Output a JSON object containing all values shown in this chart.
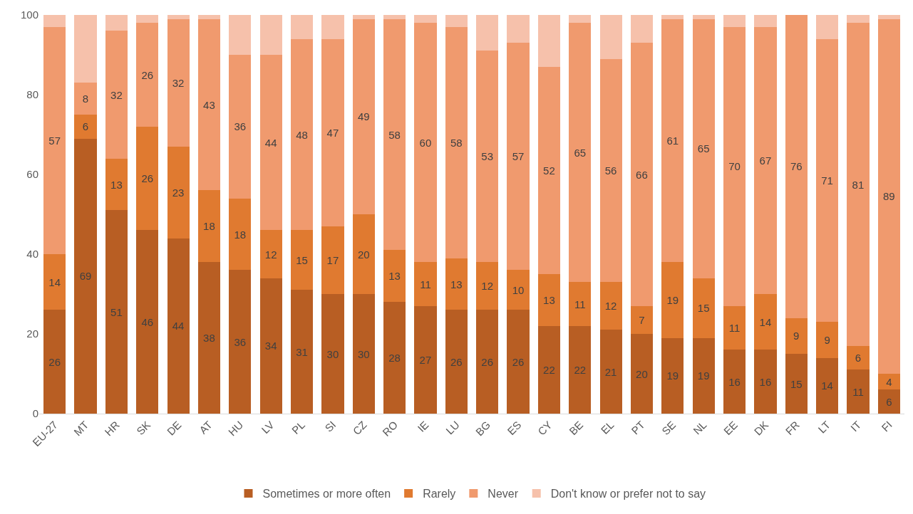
{
  "chart_data": {
    "type": "bar",
    "stacked": true,
    "categories": [
      "EU-27",
      "MT",
      "HR",
      "SK",
      "DE",
      "AT",
      "HU",
      "LV",
      "PL",
      "SI",
      "CZ",
      "RO",
      "IE",
      "LU",
      "BG",
      "ES",
      "CY",
      "BE",
      "EL",
      "PT",
      "SE",
      "NL",
      "EE",
      "DK",
      "FR",
      "LT",
      "IT",
      "FI"
    ],
    "series": [
      {
        "name": "Sometimes or more often",
        "color": "#b85e23",
        "values": [
          26,
          69,
          51,
          46,
          44,
          38,
          36,
          34,
          31,
          30,
          30,
          28,
          27,
          26,
          26,
          26,
          22,
          22,
          21,
          20,
          19,
          19,
          16,
          16,
          15,
          14,
          11,
          6
        ],
        "value_labels": [
          "26",
          "69",
          "51",
          "46",
          "44",
          "38",
          "36",
          "34",
          "31",
          "30",
          "30",
          "28",
          "27",
          "26",
          "26",
          "26",
          "22",
          "22",
          "21",
          "20",
          "19",
          "19",
          "16",
          "16",
          "15",
          "14",
          "11",
          "6"
        ]
      },
      {
        "name": "Rarely",
        "color": "#e07a30",
        "values": [
          14,
          6,
          13,
          26,
          23,
          18,
          18,
          12,
          15,
          17,
          20,
          13,
          11,
          13,
          12,
          10,
          13,
          11,
          12,
          7,
          19,
          15,
          11,
          14,
          9,
          9,
          6,
          4
        ],
        "value_labels": [
          "14",
          "6",
          "13",
          "26",
          "23",
          "18",
          "18",
          "12",
          "15",
          "17",
          "20",
          "13",
          "11",
          "13",
          "12",
          "10",
          "13",
          "11",
          "12",
          "7",
          "19",
          "15",
          "11",
          "14",
          "9",
          "9",
          "6",
          "4"
        ]
      },
      {
        "name": "Never",
        "color": "#f09a6e",
        "values": [
          57,
          8,
          32,
          26,
          32,
          43,
          36,
          44,
          48,
          47,
          49,
          58,
          60,
          58,
          53,
          57,
          52,
          65,
          56,
          66,
          61,
          65,
          70,
          67,
          76,
          71,
          81,
          89
        ],
        "value_labels": [
          "57",
          "8",
          "32",
          "26",
          "32",
          "43",
          "36",
          "44",
          "48",
          "47",
          "49",
          "58",
          "60",
          "58",
          "53",
          "57",
          "52",
          "65",
          "56",
          "66",
          "61",
          "65",
          "70",
          "67",
          "76",
          "71",
          "81",
          "89"
        ]
      },
      {
        "name": "Don't know or prefer not to say",
        "color": "#f6c1ab",
        "values": [
          3,
          17,
          4,
          2,
          1,
          1,
          10,
          10,
          6,
          6,
          1,
          1,
          2,
          3,
          9,
          7,
          13,
          2,
          11,
          7,
          1,
          1,
          3,
          3,
          0,
          6,
          2,
          1
        ]
      }
    ],
    "ylim": [
      0,
      100
    ],
    "yticks": [
      0,
      20,
      40,
      60,
      80,
      100
    ],
    "grid": false,
    "legend": "bottom"
  }
}
